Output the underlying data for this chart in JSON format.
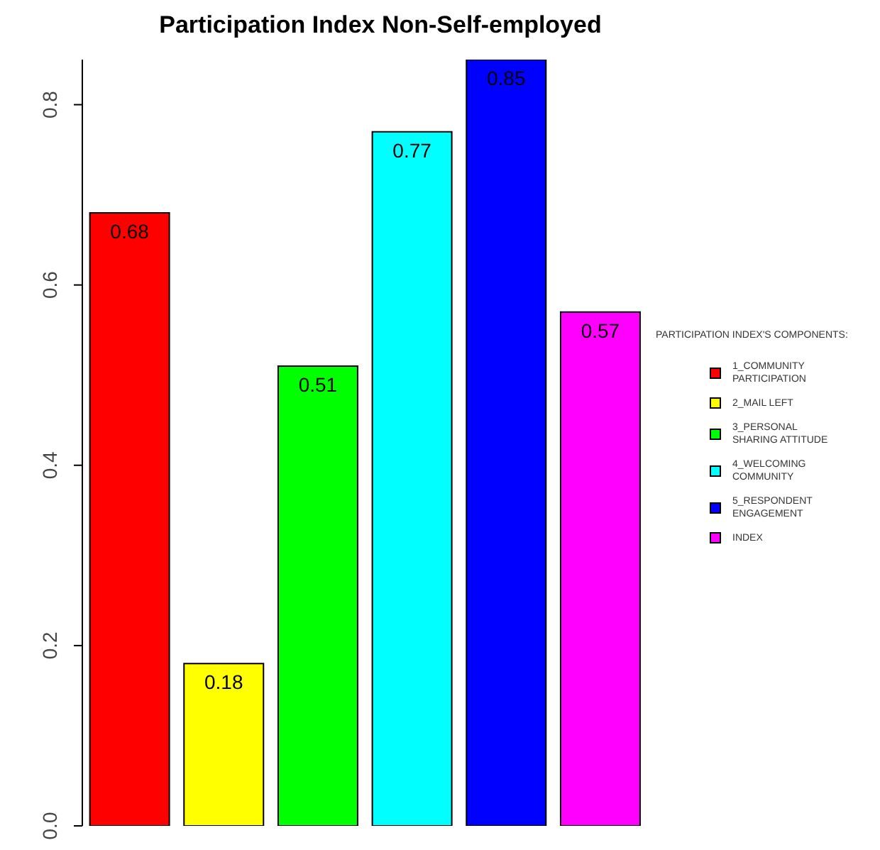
{
  "chart_data": {
    "type": "bar",
    "title": "Participation Index Non-Self-employed",
    "legend_title": "PARTICIPATION INDEX'S COMPONENTS:",
    "categories": [
      null,
      null,
      null,
      null,
      null,
      null
    ],
    "stacked": true,
    "series": [
      {
        "name": "1_COMMUNITY PARTICIPATION",
        "color": "#ff0000",
        "values": [
          0.68,
          null,
          null,
          null,
          null,
          null
        ]
      },
      {
        "name": "2_MAIL LEFT",
        "color": "#ffff00",
        "values": [
          null,
          0.18,
          null,
          null,
          null,
          null
        ]
      },
      {
        "name": "3_PERSONAL SHARING ATTITUDE",
        "color": "#00ff00",
        "values": [
          null,
          null,
          0.51,
          null,
          null,
          null
        ]
      },
      {
        "name": "4_WELCOMING COMMUNITY",
        "color": "#00ffff",
        "values": [
          null,
          null,
          null,
          0.77,
          null,
          null
        ]
      },
      {
        "name": "5_RESPONDENT ENGAGEMENT",
        "color": "#0000ff",
        "values": [
          null,
          null,
          null,
          null,
          0.85,
          null
        ]
      },
      {
        "name": "INDEX",
        "color": "#ff00ff",
        "values": [
          null,
          null,
          null,
          null,
          null,
          0.57
        ]
      }
    ],
    "ylim": [
      0,
      0.85
    ],
    "yticks": [
      {
        "value": 0,
        "label": "0.0"
      },
      0.2,
      0.4,
      0.6,
      0.8
    ],
    "data_labels": true,
    "grid": false,
    "legend": "right"
  }
}
